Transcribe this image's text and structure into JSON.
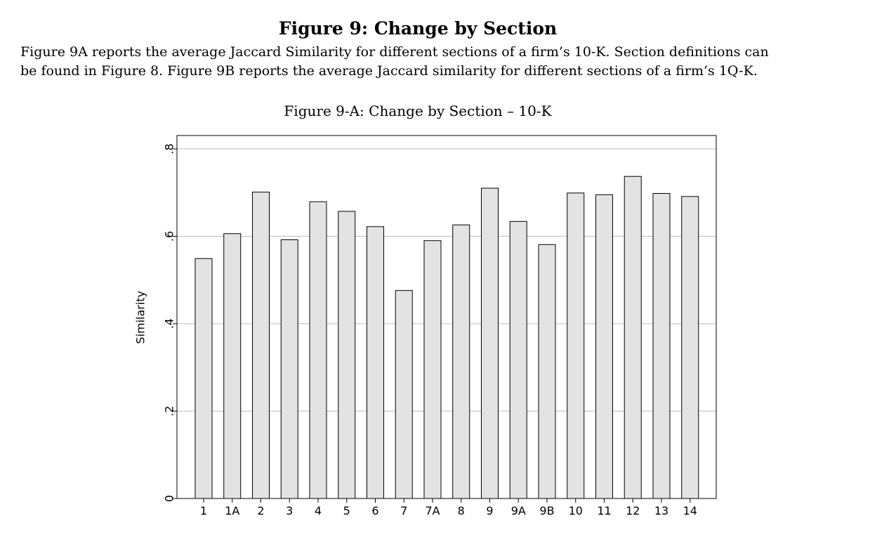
{
  "page": {
    "heading": "Figure 9: Change by Section",
    "caption_lines": [
      "Figure 9A reports the average Jaccard Similarity for different sections of a firm’s 10-K. Section definitions can",
      "be found in Figure 8. Figure 9B reports the average Jaccard similarity for different sections of a firm’s 1Q-K."
    ]
  },
  "chart_data": {
    "type": "bar",
    "title": "Figure 9-A: Change by Section – 10-K",
    "xlabel": "",
    "ylabel": "Similarity",
    "categories": [
      "1",
      "1A",
      "2",
      "3",
      "4",
      "5",
      "6",
      "7",
      "7A",
      "8",
      "9",
      "9A",
      "9B",
      "10",
      "11",
      "12",
      "13",
      "14"
    ],
    "values": [
      0.549,
      0.606,
      0.701,
      0.592,
      0.679,
      0.657,
      0.622,
      0.476,
      0.59,
      0.626,
      0.71,
      0.634,
      0.581,
      0.699,
      0.695,
      0.737,
      0.698,
      0.691
    ],
    "ylim": [
      0,
      0.8
    ],
    "yticks": [
      0,
      0.2,
      0.4,
      0.6,
      0.8
    ],
    "ytick_labels": [
      "0",
      ".2",
      ".4",
      ".6",
      ".8"
    ],
    "grid": true,
    "legend": "none",
    "colors": {
      "bar_fill": "#e3e3e3",
      "bar_stroke": "#000000",
      "grid": "#bdbdbd"
    }
  }
}
